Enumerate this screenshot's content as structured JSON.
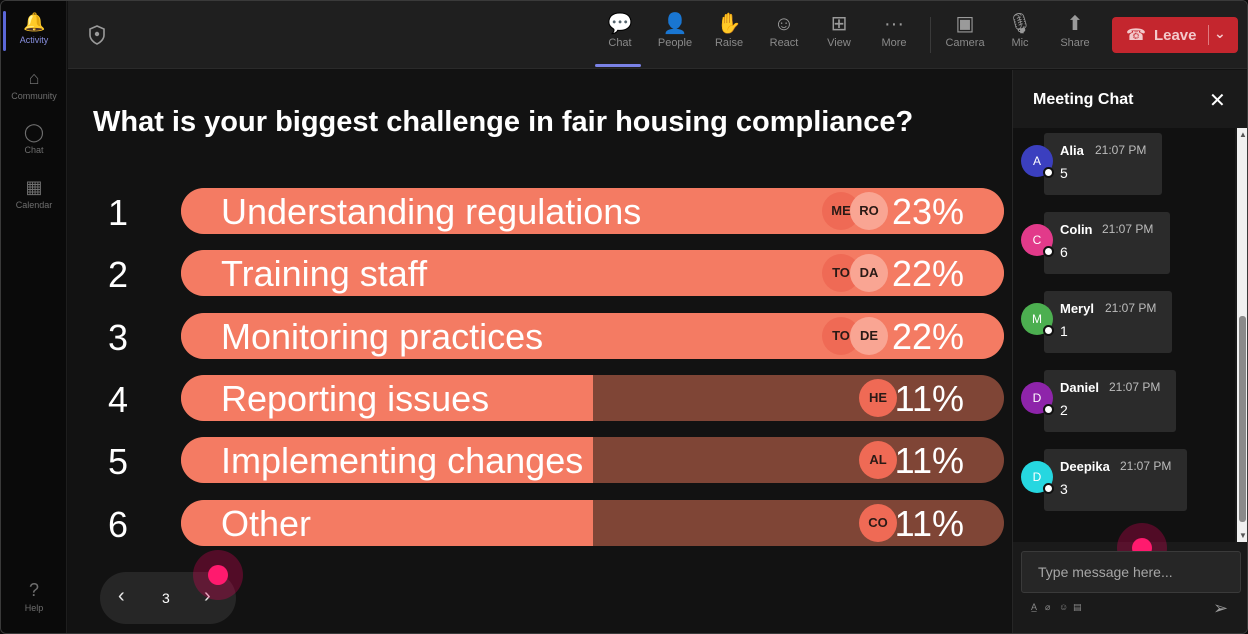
{
  "rail": {
    "items": [
      {
        "label": "Activity",
        "icon": "bell-icon",
        "glyph": "🔔"
      },
      {
        "label": "Community",
        "icon": "community-icon",
        "glyph": "⌂"
      },
      {
        "label": "Chat",
        "icon": "chat-icon",
        "glyph": "◯"
      },
      {
        "label": "Calendar",
        "icon": "calendar-icon",
        "glyph": "▦"
      }
    ],
    "help": {
      "label": "Help",
      "icon": "help-icon",
      "glyph": "?"
    }
  },
  "toolbar": {
    "buttons": [
      {
        "label": "Chat",
        "icon": "chat-icon",
        "glyph": "💬"
      },
      {
        "label": "People",
        "icon": "people-icon",
        "glyph": "👤"
      },
      {
        "label": "Raise",
        "icon": "raise-hand-icon",
        "glyph": "✋"
      },
      {
        "label": "React",
        "icon": "react-icon",
        "glyph": "☺"
      },
      {
        "label": "View",
        "icon": "view-icon",
        "glyph": "⊞"
      },
      {
        "label": "More",
        "icon": "more-icon",
        "glyph": "···"
      },
      {
        "label": "Camera",
        "icon": "camera-off-icon",
        "glyph": "▣"
      },
      {
        "label": "Mic",
        "icon": "mic-icon",
        "glyph": "🎙"
      },
      {
        "label": "Share",
        "icon": "share-icon",
        "glyph": "⬆"
      }
    ],
    "leave_label": "Leave"
  },
  "poll": {
    "question": "What is your biggest challenge in fair housing compliance?",
    "options": [
      {
        "num": "1",
        "label": "Understanding regulations",
        "percent": "23%",
        "fill": 1.0,
        "avatars": [
          "ME",
          "RO"
        ]
      },
      {
        "num": "2",
        "label": "Training staff",
        "percent": "22%",
        "fill": 1.0,
        "avatars": [
          "TO",
          "DA"
        ]
      },
      {
        "num": "3",
        "label": "Monitoring practices",
        "percent": "22%",
        "fill": 1.0,
        "avatars": [
          "TO",
          "DE"
        ]
      },
      {
        "num": "4",
        "label": "Reporting issues",
        "percent": "11%",
        "fill": 0.5,
        "avatars": [
          "HE"
        ]
      },
      {
        "num": "5",
        "label": "Implementing changes",
        "percent": "11%",
        "fill": 0.5,
        "avatars": [
          "AL"
        ]
      },
      {
        "num": "6",
        "label": "Other",
        "percent": "11%",
        "fill": 0.5,
        "avatars": [
          "CO"
        ]
      }
    ],
    "page": "3"
  },
  "chat": {
    "title": "Meeting Chat",
    "messages": [
      {
        "initial": "A",
        "name": "Alia",
        "time": "21:07 PM",
        "text": "5",
        "color": "#3b3fbf"
      },
      {
        "initial": "C",
        "name": "Colin",
        "time": "21:07 PM",
        "text": "6",
        "color": "#e23a8a"
      },
      {
        "initial": "M",
        "name": "Meryl",
        "time": "21:07 PM",
        "text": "1",
        "color": "#4caf50"
      },
      {
        "initial": "D",
        "name": "Daniel",
        "time": "21:07 PM",
        "text": "2",
        "color": "#8e24aa"
      },
      {
        "initial": "D",
        "name": "Deepika",
        "time": "21:07 PM",
        "text": "3",
        "color": "#26d7e0"
      }
    ],
    "compose_placeholder": "Type message here..."
  },
  "colors": {
    "accent": "#5b67d8",
    "leave": "#c4262e",
    "bar_fill": "#f47b63",
    "bar_track": "#7f4536"
  }
}
